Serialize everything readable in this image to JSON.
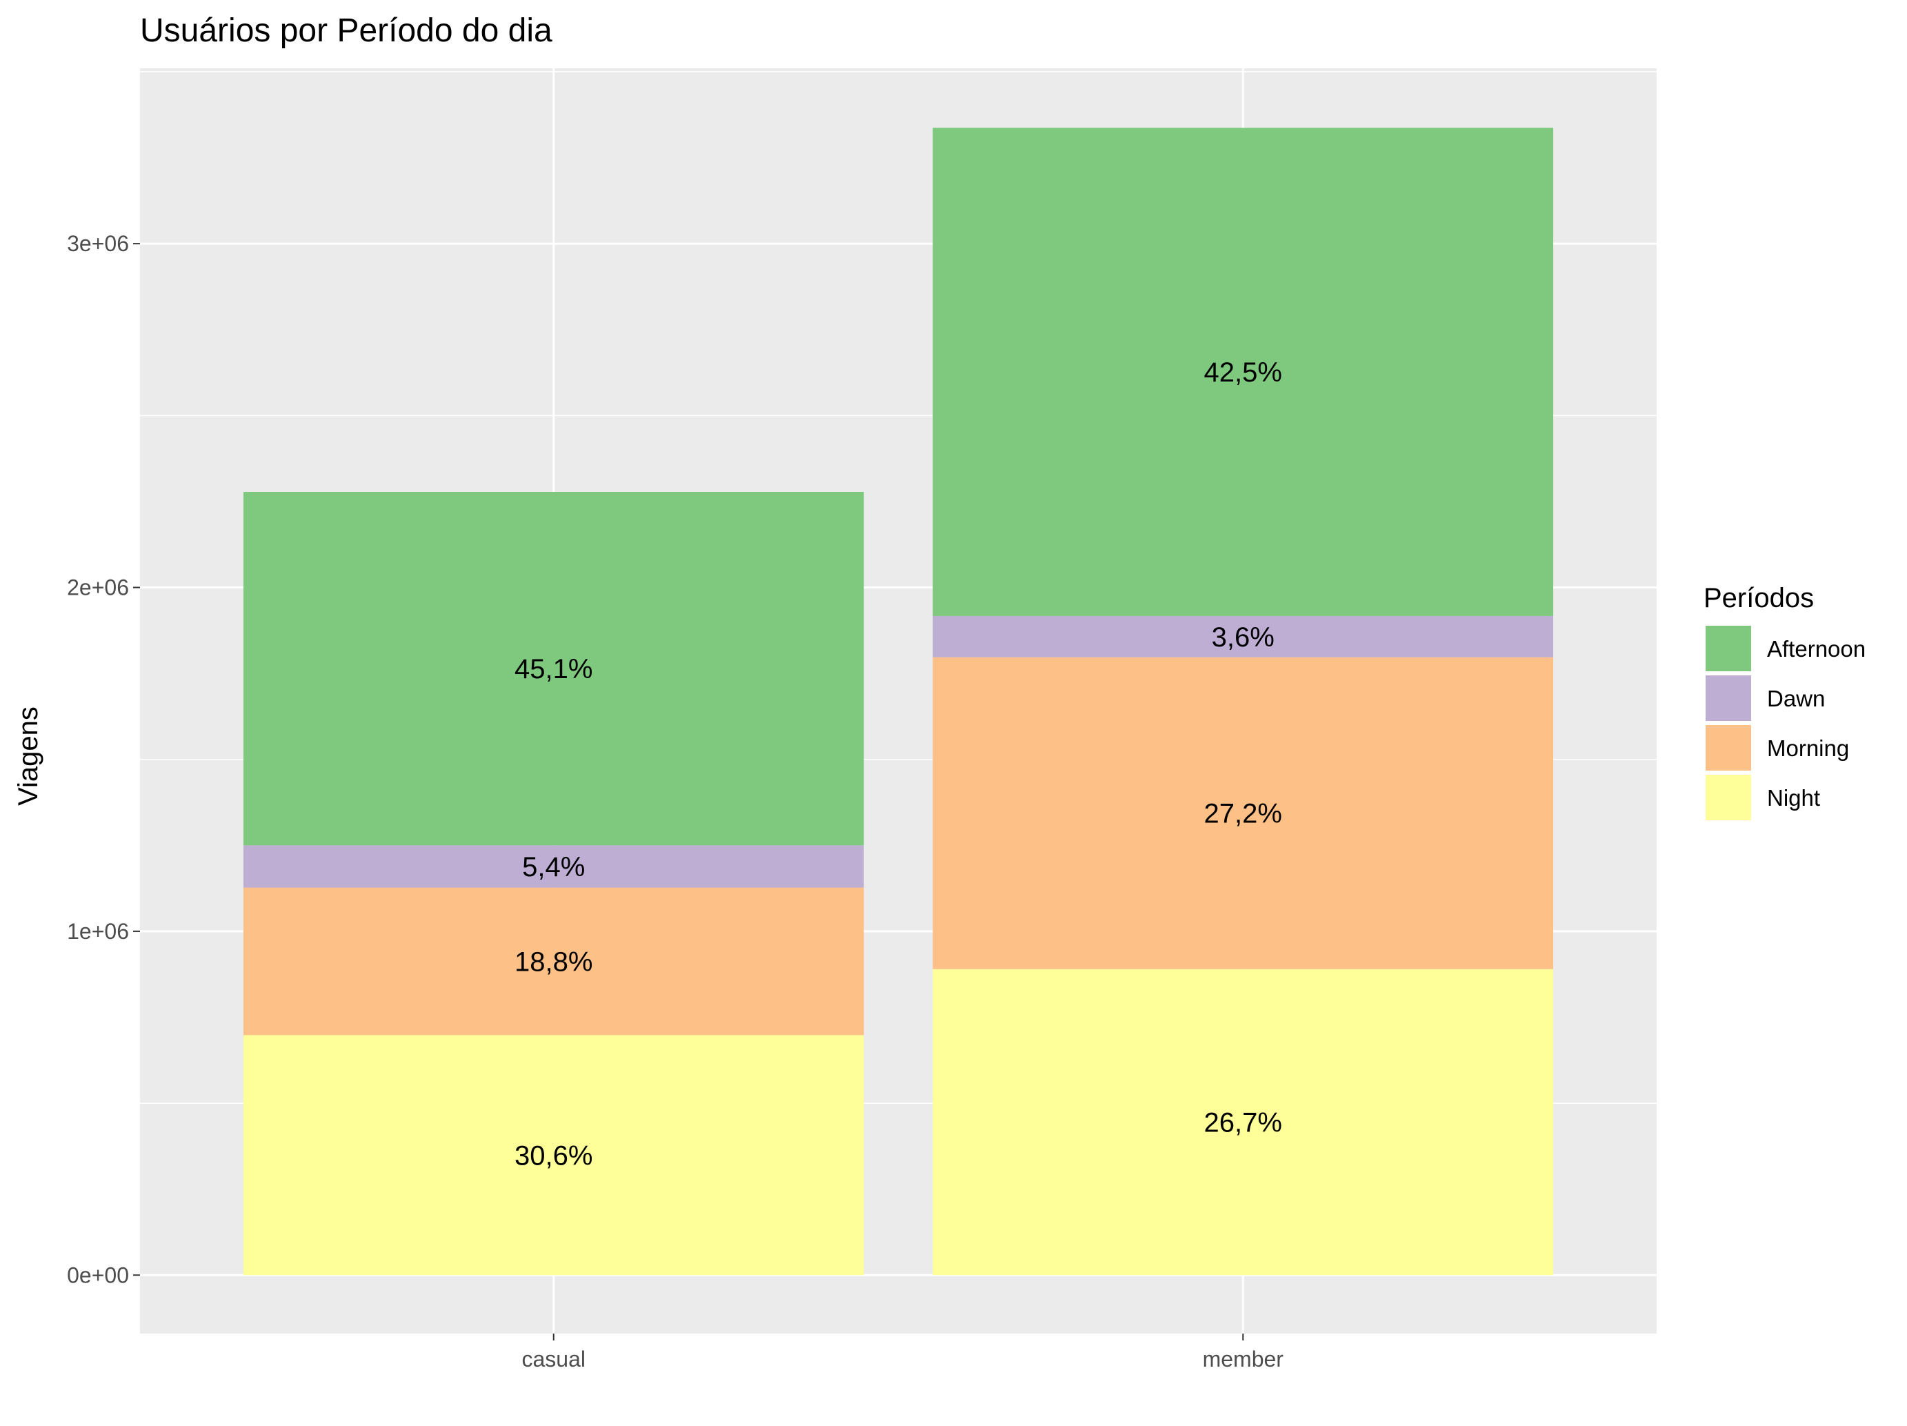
{
  "chart_data": {
    "type": "bar",
    "stacked": true,
    "title": "Usuários por Período do dia",
    "xlabel": "",
    "ylabel": "Viagens",
    "categories": [
      "casual",
      "member"
    ],
    "ylim": [
      -170000,
      3510000
    ],
    "y_ticks": [
      0,
      1000000,
      2000000,
      3000000
    ],
    "y_tick_labels": [
      "0e+00",
      "1e+06",
      "2e+06",
      "3e+06"
    ],
    "grid": true,
    "legend_position": "right",
    "legend_title": "Períodos",
    "legend_order": [
      "Afternoon",
      "Dawn",
      "Morning",
      "Night"
    ],
    "stack_order_bottom_to_top": [
      "Night",
      "Morning",
      "Dawn",
      "Afternoon"
    ],
    "series": [
      {
        "name": "Afternoon",
        "color": "#7FC97F",
        "values": [
          1028000,
          1420000
        ],
        "labels": [
          "45,1%",
          "42,5%"
        ]
      },
      {
        "name": "Dawn",
        "color": "#BEAED4",
        "values": [
          123000,
          120000
        ],
        "labels": [
          "5,4%",
          "3,6%"
        ]
      },
      {
        "name": "Morning",
        "color": "#FDC086",
        "values": [
          429000,
          907000
        ],
        "labels": [
          "18,8%",
          "27,2%"
        ]
      },
      {
        "name": "Night",
        "color": "#FFFF99",
        "values": [
          698000,
          890000
        ],
        "labels": [
          "30,6%",
          "26,7%"
        ]
      }
    ]
  }
}
